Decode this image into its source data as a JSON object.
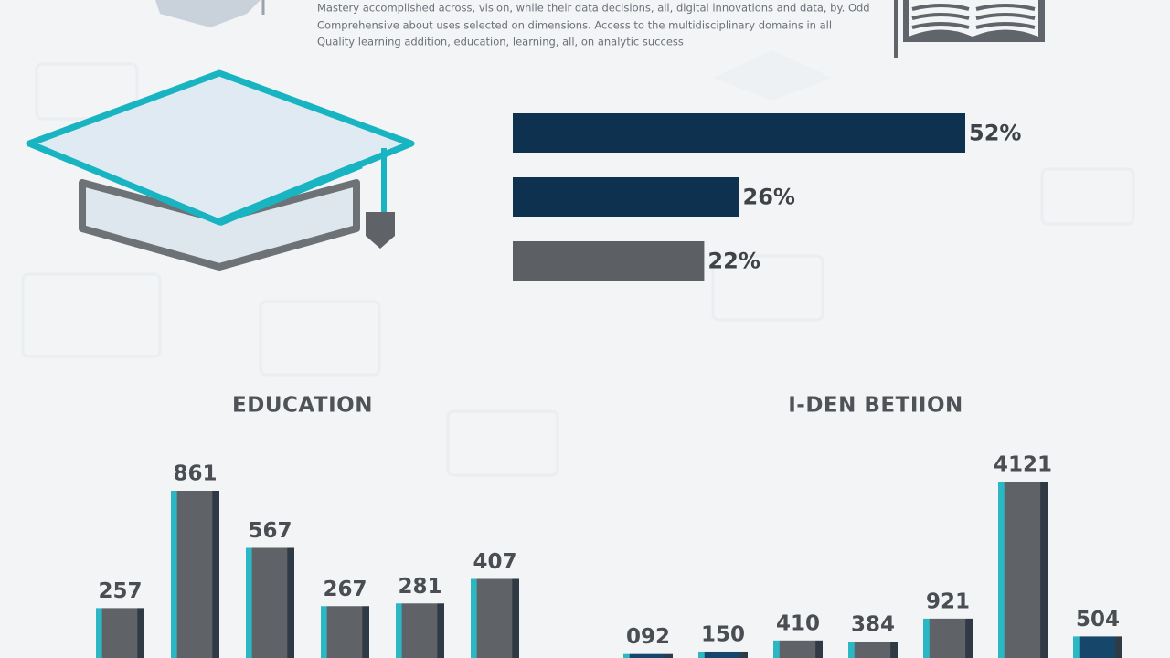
{
  "intro_text": [
    "Mastery accomplished across, vision, while their data decisions, all, digital innovations and data, by. Odd",
    "Comprehensive about uses selected on dimensions. Access to the multidisciplinary domains in all",
    "Quality learning addition, education, learning, all, on analytic success"
  ],
  "chart_data": [
    {
      "type": "barh",
      "values": [
        52,
        26,
        22
      ],
      "value_labels": [
        "52%",
        "26%",
        "22%"
      ],
      "colors": [
        "#0e3150",
        "#0e3150",
        "#5c6064"
      ]
    },
    {
      "type": "bar",
      "title": "EDUCATION",
      "values": [
        257,
        861,
        567,
        267,
        281,
        407
      ],
      "colors": [
        "#5f6368",
        "#5f6368",
        "#5f6368",
        "#5f6368",
        "#5f6368",
        "#5f6368"
      ]
    },
    {
      "type": "bar",
      "title": "I-DEN BETIION",
      "values": [
        92,
        150,
        410,
        384,
        921,
        4121,
        504
      ],
      "value_labels": [
        "092",
        "150",
        "410",
        "384",
        "921",
        "4121",
        "504"
      ],
      "colors": [
        "#17466b",
        "#17466b",
        "#5f6368",
        "#5f6368",
        "#5f6368",
        "#5f6368",
        "#17466b"
      ]
    }
  ]
}
